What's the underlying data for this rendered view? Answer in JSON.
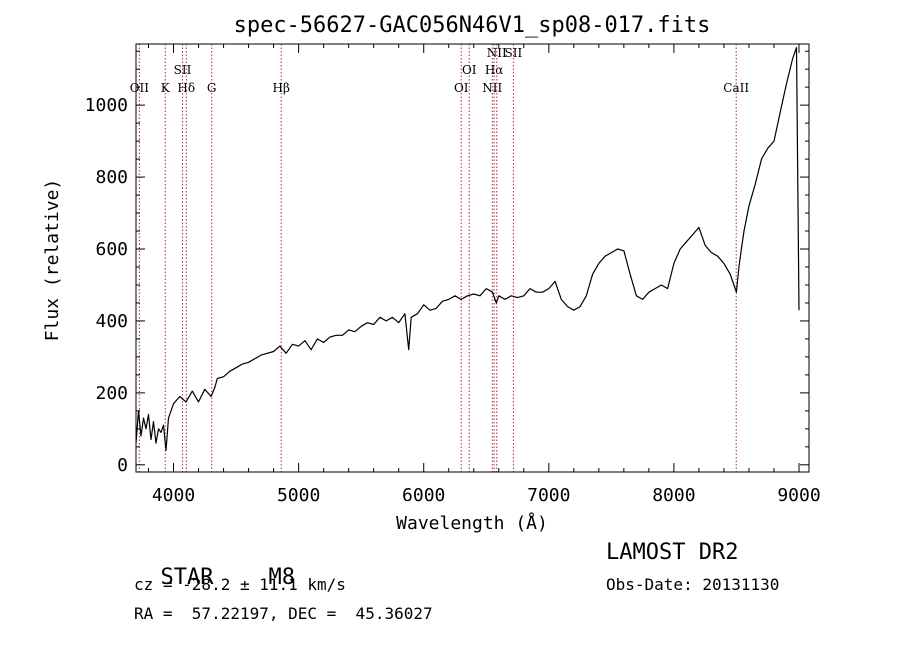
{
  "chart_data": {
    "type": "line",
    "title": "spec-56627-GAC056N46V1_sp08-017.fits",
    "xlabel": "Wavelength (Å)",
    "ylabel": "Flux (relative)",
    "xlim": [
      3700,
      9080
    ],
    "ylim": [
      -20,
      1170
    ],
    "xticks": [
      4000,
      5000,
      6000,
      7000,
      8000,
      9000
    ],
    "yticks": [
      0,
      200,
      400,
      600,
      800,
      1000
    ],
    "series": [
      {
        "color": "#000000",
        "x": [
          3700,
          3720,
          3740,
          3760,
          3780,
          3800,
          3820,
          3840,
          3860,
          3880,
          3900,
          3920,
          3940,
          3960,
          3980,
          4000,
          4050,
          4100,
          4150,
          4200,
          4250,
          4300,
          4330,
          4350,
          4400,
          4450,
          4500,
          4550,
          4600,
          4700,
          4800,
          4850,
          4900,
          4950,
          5000,
          5050,
          5100,
          5150,
          5200,
          5250,
          5300,
          5350,
          5400,
          5450,
          5500,
          5550,
          5600,
          5650,
          5700,
          5750,
          5800,
          5850,
          5880,
          5900,
          5950,
          6000,
          6050,
          6100,
          6150,
          6200,
          6250,
          6300,
          6350,
          6400,
          6450,
          6500,
          6550,
          6580,
          6600,
          6650,
          6700,
          6750,
          6800,
          6850,
          6900,
          6950,
          7000,
          7050,
          7100,
          7150,
          7200,
          7250,
          7300,
          7350,
          7400,
          7450,
          7500,
          7550,
          7600,
          7650,
          7700,
          7750,
          7800,
          7850,
          7900,
          7950,
          8000,
          8050,
          8100,
          8150,
          8200,
          8250,
          8300,
          8350,
          8400,
          8450,
          8480,
          8500,
          8520,
          8540,
          8560,
          8600,
          8650,
          8700,
          8750,
          8800,
          8850,
          8900,
          8950,
          8980,
          9000
        ],
        "y": [
          60,
          150,
          80,
          130,
          100,
          140,
          70,
          120,
          60,
          100,
          90,
          110,
          40,
          130,
          150,
          170,
          190,
          175,
          205,
          175,
          210,
          190,
          215,
          240,
          245,
          260,
          270,
          280,
          285,
          305,
          315,
          330,
          310,
          335,
          330,
          345,
          320,
          350,
          340,
          355,
          360,
          360,
          375,
          370,
          385,
          395,
          390,
          410,
          400,
          410,
          395,
          420,
          320,
          410,
          420,
          445,
          430,
          435,
          455,
          460,
          470,
          460,
          470,
          475,
          470,
          490,
          480,
          450,
          470,
          460,
          470,
          465,
          470,
          490,
          480,
          480,
          490,
          510,
          460,
          440,
          430,
          440,
          470,
          530,
          560,
          580,
          590,
          600,
          595,
          530,
          470,
          460,
          480,
          490,
          500,
          490,
          560,
          600,
          620,
          640,
          660,
          610,
          590,
          580,
          560,
          530,
          500,
          480,
          550,
          600,
          650,
          720,
          780,
          850,
          880,
          900,
          980,
          1060,
          1130,
          1160,
          430
        ]
      }
    ],
    "line_markers": [
      {
        "label": "OII",
        "x": 3727
      },
      {
        "label": "K",
        "x": 3934
      },
      {
        "label": "SII",
        "x": 4072
      },
      {
        "label": "Hδ",
        "x": 4102
      },
      {
        "label": "G",
        "x": 4305
      },
      {
        "label": "Hβ",
        "x": 4861
      },
      {
        "label": "OI",
        "x": 6300
      },
      {
        "label": "OI",
        "x": 6364
      },
      {
        "label": "NII",
        "x": 6548
      },
      {
        "label": "Hα",
        "x": 6563
      },
      {
        "label": "NII",
        "x": 6584
      },
      {
        "label": "SII",
        "x": 6717
      },
      {
        "label": "CaII",
        "x": 8498
      }
    ],
    "marker_color": "#b03030"
  },
  "info": {
    "class_label": "STAR",
    "subclass_label": "M8",
    "survey": "LAMOST DR2",
    "cz": "cz = -28.2 ± 11.1 km/s",
    "obs_date": "Obs-Date: 20131130",
    "coords": "RA =  57.22197, DEC =  45.36027"
  }
}
